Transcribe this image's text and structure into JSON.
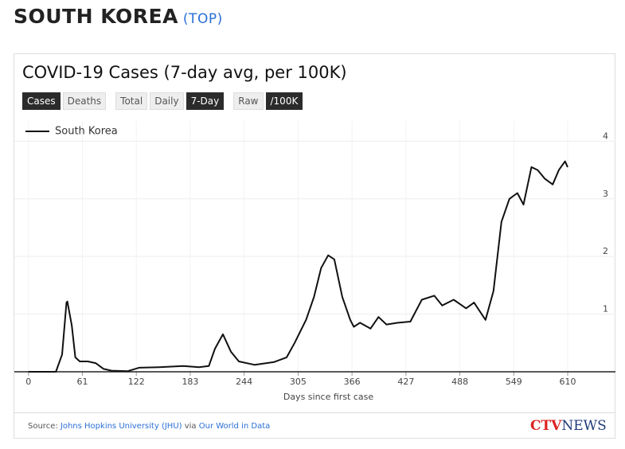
{
  "header": {
    "title": "SOUTH KOREA",
    "link": "(TOP)"
  },
  "controls": [
    [
      {
        "label": "Cases",
        "active": true
      },
      {
        "label": "Deaths",
        "active": false
      }
    ],
    [
      {
        "label": "Total",
        "active": false
      },
      {
        "label": "Daily",
        "active": false
      },
      {
        "label": "7-Day",
        "active": true
      }
    ],
    [
      {
        "label": "Raw",
        "active": false
      },
      {
        "label": "/100K",
        "active": true
      }
    ]
  ],
  "chart_data": {
    "type": "line",
    "title": "COVID-19 Cases (7-day avg, per 100K)",
    "x_label": "Days since first case",
    "x": [
      0,
      31,
      38,
      43,
      44,
      49,
      53,
      58,
      67,
      76,
      85,
      94,
      112,
      125,
      148,
      175,
      193,
      204,
      211,
      220,
      229,
      238,
      256,
      278,
      292,
      301,
      314,
      323,
      331,
      339,
      346,
      355,
      364,
      368,
      375,
      387,
      396,
      405,
      418,
      432,
      445,
      459,
      468,
      481,
      495,
      504,
      517,
      526,
      535,
      544,
      553,
      560,
      569,
      576,
      584,
      593,
      600,
      607,
      610
    ],
    "series": [
      {
        "name": "South Korea",
        "color": "#111111",
        "values": [
          0,
          0,
          0.3,
          1.2,
          1.22,
          0.8,
          0.25,
          0.18,
          0.18,
          0.15,
          0.05,
          0.02,
          0.01,
          0.07,
          0.08,
          0.1,
          0.08,
          0.1,
          0.4,
          0.65,
          0.35,
          0.18,
          0.12,
          0.17,
          0.25,
          0.5,
          0.9,
          1.3,
          1.8,
          2.02,
          1.95,
          1.3,
          0.9,
          0.78,
          0.85,
          0.75,
          0.95,
          0.82,
          0.85,
          0.87,
          1.25,
          1.32,
          1.15,
          1.25,
          1.1,
          1.2,
          0.9,
          1.4,
          2.6,
          3.0,
          3.1,
          2.9,
          3.55,
          3.5,
          3.35,
          3.25,
          3.5,
          3.65,
          3.55
        ]
      }
    ],
    "xlim": [
      -16,
      664
    ],
    "xticks": [
      0,
      61,
      122,
      183,
      244,
      305,
      366,
      427,
      488,
      549,
      610
    ],
    "ylim": [
      0,
      4.35
    ],
    "yticks": [
      1,
      2,
      3,
      4
    ],
    "grid": true,
    "legend": "top-left"
  },
  "footer": {
    "source": "Source:",
    "source1": "Johns Hopkins University (JHU)",
    "via": "via",
    "source2": "Our World in Data",
    "logo1": "CTV",
    "logo2": "NEWS"
  }
}
